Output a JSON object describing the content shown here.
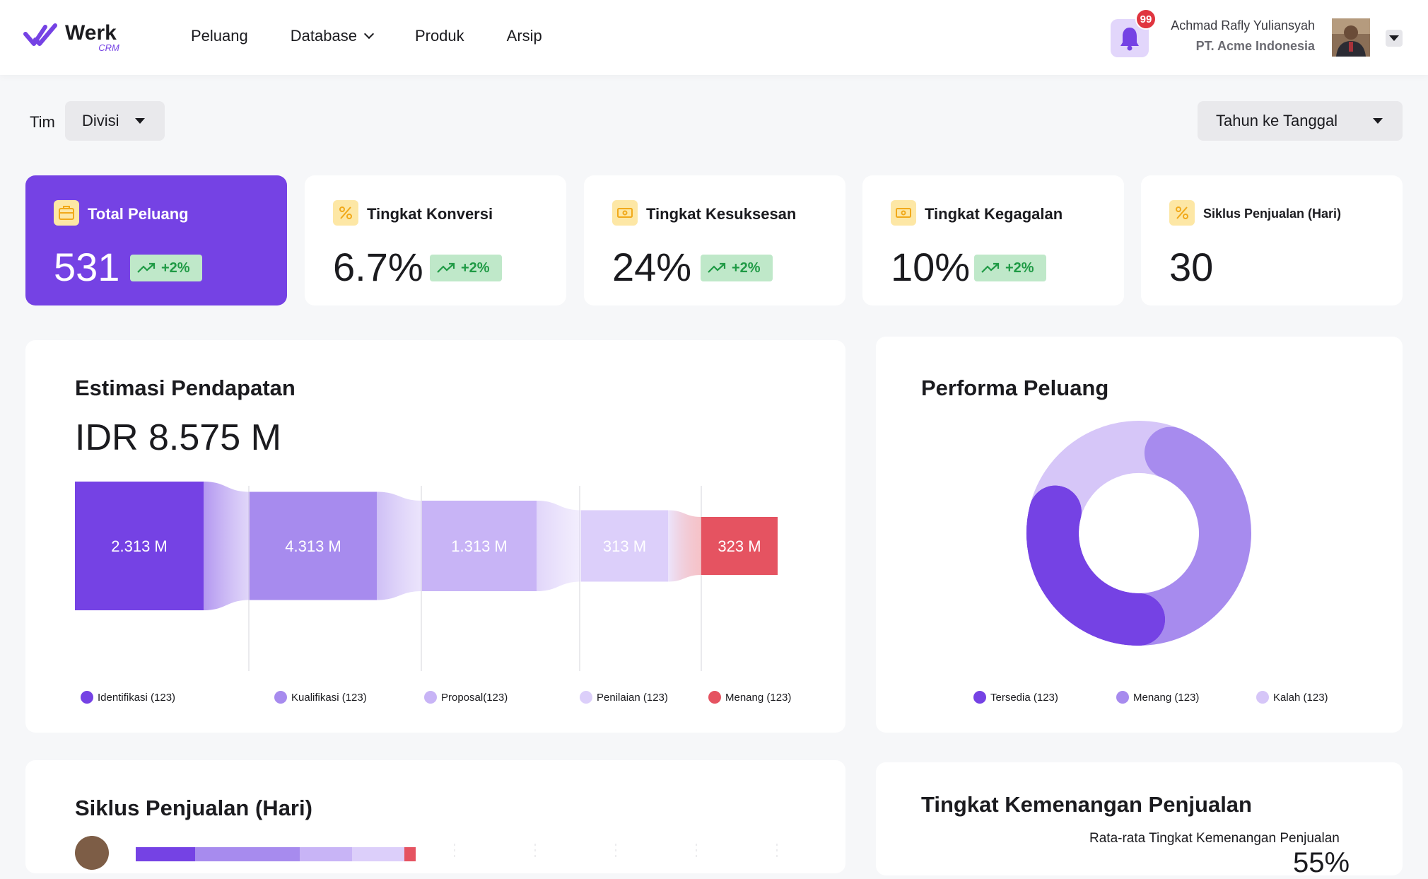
{
  "header": {
    "logo_word": "Werk",
    "logo_sub": "CRM",
    "nav": [
      {
        "label": "Peluang",
        "has_dropdown": false
      },
      {
        "label": "Database",
        "has_dropdown": true
      },
      {
        "label": "Produk",
        "has_dropdown": false
      },
      {
        "label": "Arsip",
        "has_dropdown": false
      }
    ],
    "notification_count": "99",
    "user_name": "Achmad Rafly Yuliansyah",
    "user_company": "PT. Acme Indonesia"
  },
  "filters": {
    "team_label": "Tim",
    "team_value": "Divisi",
    "period_value": "Tahun ke Tanggal"
  },
  "kpis": [
    {
      "title": "Total Peluang",
      "value": "531",
      "delta": "+2%",
      "icon": "briefcase-icon",
      "active": true
    },
    {
      "title": "Tingkat Konversi",
      "value": "6.7%",
      "delta": "+2%",
      "icon": "percent-icon",
      "active": false
    },
    {
      "title": "Tingkat Kesuksesan",
      "value": "24%",
      "delta": "+2%",
      "icon": "money-icon",
      "active": false
    },
    {
      "title": "Tingkat Kegagalan",
      "value": "10%",
      "delta": "+2%",
      "icon": "money-icon",
      "active": false
    },
    {
      "title": "Siklus Penjualan (Hari)",
      "value": "30",
      "icon": "percent-icon",
      "active": false
    }
  ],
  "revenue": {
    "title": "Estimasi Pendapatan",
    "total": "IDR 8.575 M"
  },
  "performance": {
    "title": "Performa Peluang"
  },
  "sales_cycle": {
    "title": "Siklus Penjualan (Hari)"
  },
  "win_rate": {
    "title": "Tingkat Kemenangan Penjualan",
    "subtitle": "Rata-rata Tingkat Kemenangan Penjualan",
    "value": "55%"
  },
  "colors": {
    "primary": "#7542e4",
    "stage2": "#a78bee",
    "stage3": "#c8b4f6",
    "stage4": "#dccffa",
    "won": "#e55361",
    "delta_bg": "#bfe8c9",
    "delta_fg": "#1f9a45"
  },
  "chart_data": [
    {
      "type": "bar",
      "title": "Estimasi Pendapatan",
      "subtitle": "IDR 8.575 M",
      "categories": [
        "Identifikasi (123)",
        "Kualifikasi (123)",
        "Proposal(123)",
        "Penilaian (123)",
        "Menang (123)"
      ],
      "values": [
        2313,
        4313,
        1313,
        313,
        323
      ],
      "value_labels": [
        "2.313 M",
        "4.313 M",
        "1.313 M",
        "313 M",
        "323 M"
      ],
      "colors": [
        "#7542e4",
        "#a78bee",
        "#c8b4f6",
        "#dccffa",
        "#e55361"
      ],
      "legend_position": "bottom"
    },
    {
      "type": "pie",
      "title": "Performa Peluang",
      "categories": [
        "Tersedia (123)",
        "Menang (123)",
        "Kalah (123)"
      ],
      "values": [
        35,
        35,
        30
      ],
      "colors": [
        "#7542e4",
        "#a78bee",
        "#d6c6f8"
      ],
      "legend_position": "bottom"
    }
  ]
}
